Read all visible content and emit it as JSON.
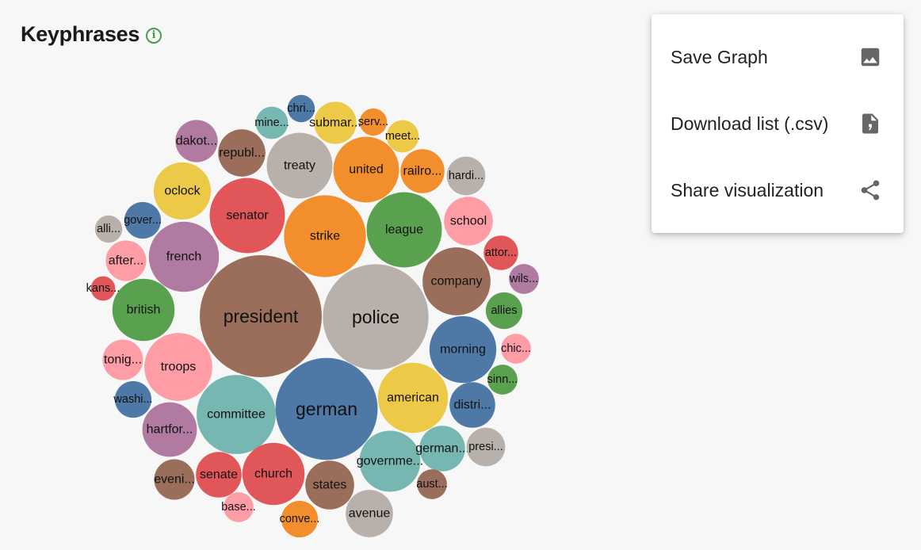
{
  "header": {
    "title": "Keyphrases",
    "info_icon": "i"
  },
  "menu": {
    "items": [
      {
        "label": "Save Graph",
        "icon": "image-icon"
      },
      {
        "label": "Download list (.csv)",
        "icon": "csv-file-icon"
      },
      {
        "label": "Share visualization",
        "icon": "share-icon"
      }
    ]
  },
  "chart_data": {
    "type": "packed-bubble",
    "title": "Keyphrases",
    "series": [
      {
        "label": "president",
        "value": 100,
        "color": "#9b6e5c"
      },
      {
        "label": "police",
        "value": 75,
        "color": "#b8b0ab"
      },
      {
        "label": "german",
        "value": 70,
        "color": "#4e79a7"
      },
      {
        "label": "strike",
        "value": 45,
        "color": "#f28e2b"
      },
      {
        "label": "league",
        "value": 38,
        "color": "#59a14f"
      },
      {
        "label": "senator",
        "value": 38,
        "color": "#e15759"
      },
      {
        "label": "french",
        "value": 33,
        "color": "#b07aa1"
      },
      {
        "label": "committee",
        "value": 42,
        "color": "#76b7b2"
      },
      {
        "label": "american",
        "value": 33,
        "color": "#edc948"
      },
      {
        "label": "church",
        "value": 26,
        "color": "#e15759"
      },
      {
        "label": "troops",
        "value": 31,
        "color": "#ff9da7"
      },
      {
        "label": "united",
        "value": 29,
        "color": "#f28e2b"
      },
      {
        "label": "company",
        "value": 31,
        "color": "#9b6e5c"
      },
      {
        "label": "morning",
        "value": 30,
        "color": "#4e79a7"
      },
      {
        "label": "governme...",
        "value": 25,
        "color": "#76b7b2"
      },
      {
        "label": "treaty",
        "value": 29,
        "color": "#b8b0ab"
      },
      {
        "label": "british",
        "value": 26,
        "color": "#59a14f"
      },
      {
        "label": "oclock",
        "value": 22,
        "color": "#edc948"
      },
      {
        "label": "hartfor...",
        "value": 20,
        "color": "#b07aa1"
      },
      {
        "label": "states",
        "value": 16,
        "color": "#9b6e5c"
      },
      {
        "label": "avenue",
        "value": 15,
        "color": "#b8b0ab"
      },
      {
        "label": "senate",
        "value": 14,
        "color": "#e15759"
      },
      {
        "label": "republ...",
        "value": 15,
        "color": "#9b6e5c"
      },
      {
        "label": "school",
        "value": 16,
        "color": "#ff9da7"
      },
      {
        "label": "distri...",
        "value": 14,
        "color": "#4e79a7"
      },
      {
        "label": "german...",
        "value": 14,
        "color": "#76b7b2"
      },
      {
        "label": "dakot...",
        "value": 12,
        "color": "#b07aa1"
      },
      {
        "label": "submar...",
        "value": 12,
        "color": "#edc948"
      },
      {
        "label": "railro...",
        "value": 13,
        "color": "#f28e2b"
      },
      {
        "label": "hardi...",
        "value": 10,
        "color": "#b8b0ab"
      },
      {
        "label": "allies",
        "value": 9,
        "color": "#59a14f"
      },
      {
        "label": "presi...",
        "value": 10,
        "color": "#b8b0ab"
      },
      {
        "label": "eveni...",
        "value": 11,
        "color": "#9b6e5c"
      },
      {
        "label": "washi...",
        "value": 9,
        "color": "#4e79a7"
      },
      {
        "label": "tonig...",
        "value": 11,
        "color": "#ff9da7"
      },
      {
        "label": "after...",
        "value": 11,
        "color": "#ff9da7"
      },
      {
        "label": "gover...",
        "value": 9,
        "color": "#4e79a7"
      },
      {
        "label": "conve...",
        "value": 9,
        "color": "#f28e2b"
      },
      {
        "label": "attor...",
        "value": 8,
        "color": "#e15759"
      },
      {
        "label": "aust...",
        "value": 6,
        "color": "#9b6e5c"
      },
      {
        "label": "mine...",
        "value": 7,
        "color": "#76b7b2"
      },
      {
        "label": "meet...",
        "value": 7,
        "color": "#edc948"
      },
      {
        "label": "wils...",
        "value": 6,
        "color": "#b07aa1"
      },
      {
        "label": "chic...",
        "value": 6,
        "color": "#ff9da7"
      },
      {
        "label": "sinn...",
        "value": 6,
        "color": "#59a14f"
      },
      {
        "label": "base...",
        "value": 6,
        "color": "#ff9da7"
      },
      {
        "label": "alli...",
        "value": 5,
        "color": "#b8b0ab"
      },
      {
        "label": "kans...",
        "value": 4,
        "color": "#e15759"
      },
      {
        "label": "chri...",
        "value": 5,
        "color": "#4e79a7"
      },
      {
        "label": "serv...",
        "value": 5,
        "color": "#f28e2b"
      }
    ]
  }
}
